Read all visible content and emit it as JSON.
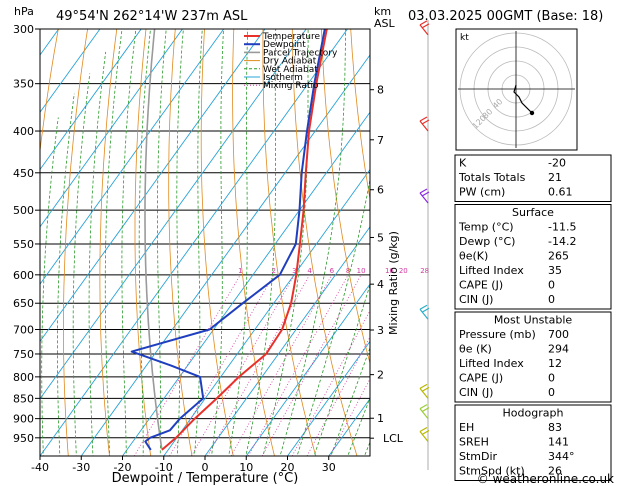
{
  "header": {
    "location": "49°54'N  262°14'W  237m  ASL",
    "datetime": "03.03.2025  00GMT  (Base: 18)",
    "hpa_unit": "hPa",
    "km_unit": "km",
    "asl_unit": "ASL",
    "mixing_label": "Mixing Ratio (g/kg)"
  },
  "chart_data": {
    "type": "line",
    "subtype": "skew-t",
    "xlabel": "Dewpoint / Temperature (°C)",
    "xlim": [
      -40,
      40
    ],
    "ylim": [
      1000,
      300
    ],
    "yscale": "log",
    "x_ticks": [
      -40,
      -30,
      -20,
      -10,
      0,
      10,
      20,
      30
    ],
    "pressure_levels": [
      300,
      350,
      400,
      450,
      500,
      550,
      600,
      650,
      700,
      750,
      800,
      850,
      900,
      950
    ],
    "km_ticks": [
      {
        "label": "8",
        "p": 356
      },
      {
        "label": "7",
        "p": 410
      },
      {
        "label": "6",
        "p": 472
      },
      {
        "label": "5",
        "p": 540
      },
      {
        "label": "4",
        "p": 616
      },
      {
        "label": "3",
        "p": 701
      },
      {
        "label": "2",
        "p": 795
      },
      {
        "label": "1",
        "p": 899
      },
      {
        "label": "LCL",
        "p": 951
      }
    ],
    "mixing_ratio_labels": [
      "1",
      "2",
      "3",
      "4",
      "6",
      "8",
      "10",
      "16",
      "20",
      "28"
    ],
    "legend": [
      "Temperature",
      "Dewpoint",
      "Parcel Trajectory",
      "Dry Adiabat",
      "Wet Adiabat",
      "Isotherm",
      "Mixing Ratio"
    ],
    "series": [
      {
        "name": "Temperature",
        "color": "#e8312a",
        "points": [
          [
            983,
            -11.5
          ],
          [
            950,
            -10.2
          ],
          [
            900,
            -9.0
          ],
          [
            850,
            -7.2
          ],
          [
            800,
            -5.6
          ],
          [
            750,
            -3.0
          ],
          [
            700,
            -3.4
          ],
          [
            650,
            -5.8
          ],
          [
            600,
            -9.5
          ],
          [
            550,
            -14
          ],
          [
            500,
            -19
          ],
          [
            450,
            -25
          ],
          [
            400,
            -31.5
          ],
          [
            350,
            -38
          ],
          [
            300,
            -45
          ]
        ]
      },
      {
        "name": "Dewpoint",
        "color": "#1f3fbf",
        "points": [
          [
            983,
            -14.2
          ],
          [
            960,
            -17
          ],
          [
            950,
            -16.5
          ],
          [
            930,
            -13
          ],
          [
            900,
            -12.6
          ],
          [
            850,
            -10.5
          ],
          [
            800,
            -15
          ],
          [
            775,
            -24
          ],
          [
            745,
            -36
          ],
          [
            700,
            -21
          ],
          [
            650,
            -17.5
          ],
          [
            600,
            -13.5
          ],
          [
            550,
            -15
          ],
          [
            500,
            -20
          ],
          [
            450,
            -26
          ],
          [
            400,
            -32
          ],
          [
            350,
            -38.5
          ],
          [
            300,
            -45.5
          ]
        ]
      }
    ]
  },
  "hodograph": {
    "label": "kt",
    "rings": [
      "40",
      "80",
      "120"
    ]
  },
  "indices": {
    "top": [
      {
        "k": "K",
        "v": "-20"
      },
      {
        "k": "Totals Totals",
        "v": "21"
      },
      {
        "k": "PW (cm)",
        "v": "0.61"
      }
    ],
    "surface": {
      "title": "Surface",
      "rows": [
        {
          "k": "Temp (°C)",
          "v": "-11.5"
        },
        {
          "k": "Dewp (°C)",
          "v": "-14.2"
        },
        {
          "k": "θe(K)",
          "v": "265"
        },
        {
          "k": "Lifted Index",
          "v": "35"
        },
        {
          "k": "CAPE (J)",
          "v": "0"
        },
        {
          "k": "CIN (J)",
          "v": "0"
        }
      ]
    },
    "unstable": {
      "title": "Most Unstable",
      "rows": [
        {
          "k": "Pressure (mb)",
          "v": "700"
        },
        {
          "k": "θe (K)",
          "v": "294"
        },
        {
          "k": "Lifted Index",
          "v": "12"
        },
        {
          "k": "CAPE (J)",
          "v": "0"
        },
        {
          "k": "CIN (J)",
          "v": "0"
        }
      ]
    },
    "hodo": {
      "title": "Hodograph",
      "rows": [
        {
          "k": "EH",
          "v": "83"
        },
        {
          "k": "SREH",
          "v": "141"
        },
        {
          "k": "StmDir",
          "v": "344°"
        },
        {
          "k": "StmSpd (kt)",
          "v": "26"
        }
      ]
    }
  },
  "copyright": "© weatheronline.co.uk",
  "colors": {
    "dry_adiabat": "#e08a1e",
    "wet_adiabat": "#2a9a2a",
    "isotherm": "#29a3d6",
    "mixing": "#d23aa3",
    "parcel": "#9a9a9a"
  }
}
